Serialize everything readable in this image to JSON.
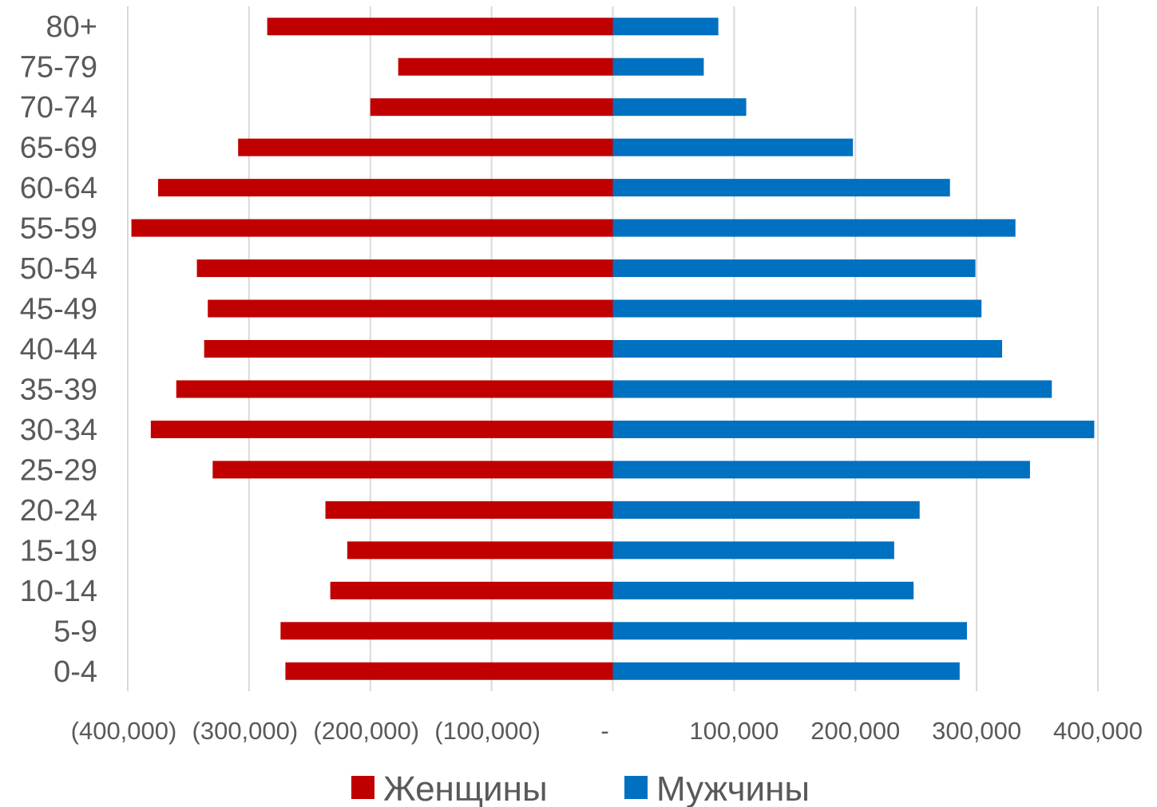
{
  "chart_data": {
    "type": "bar",
    "orientation": "horizontal",
    "categories": [
      "0-4",
      "5-9",
      "10-14",
      "15-19",
      "20-24",
      "25-29",
      "30-34",
      "35-39",
      "40-44",
      "45-49",
      "50-54",
      "55-59",
      "60-64",
      "65-69",
      "70-74",
      "75-79",
      "80+"
    ],
    "series": [
      {
        "name": "Женщины",
        "color": "#C00000",
        "values": [
          -270000,
          -274000,
          -233000,
          -219000,
          -237000,
          -330000,
          -381000,
          -360000,
          -337000,
          -334000,
          -343000,
          -397000,
          -375000,
          -309000,
          -200000,
          -177000,
          -285000
        ]
      },
      {
        "name": "Мужчины",
        "color": "#0070C0",
        "values": [
          286000,
          292000,
          248000,
          232000,
          253000,
          344000,
          397000,
          362000,
          321000,
          304000,
          299000,
          332000,
          278000,
          198000,
          110000,
          75000,
          87000
        ]
      }
    ],
    "x_ticks": [
      {
        "value": -400000,
        "label": "(400,000)"
      },
      {
        "value": -300000,
        "label": "(300,000)"
      },
      {
        "value": -200000,
        "label": "(200,000)"
      },
      {
        "value": -100000,
        "label": "(100,000)"
      },
      {
        "value": 0,
        "label": "-"
      },
      {
        "value": 100000,
        "label": "100,000"
      },
      {
        "value": 200000,
        "label": "200,000"
      },
      {
        "value": 300000,
        "label": "300,000"
      },
      {
        "value": 400000,
        "label": "400,000"
      }
    ],
    "xlim": [
      -400000,
      400000
    ],
    "grid": "vertical",
    "legend_position": "bottom"
  }
}
